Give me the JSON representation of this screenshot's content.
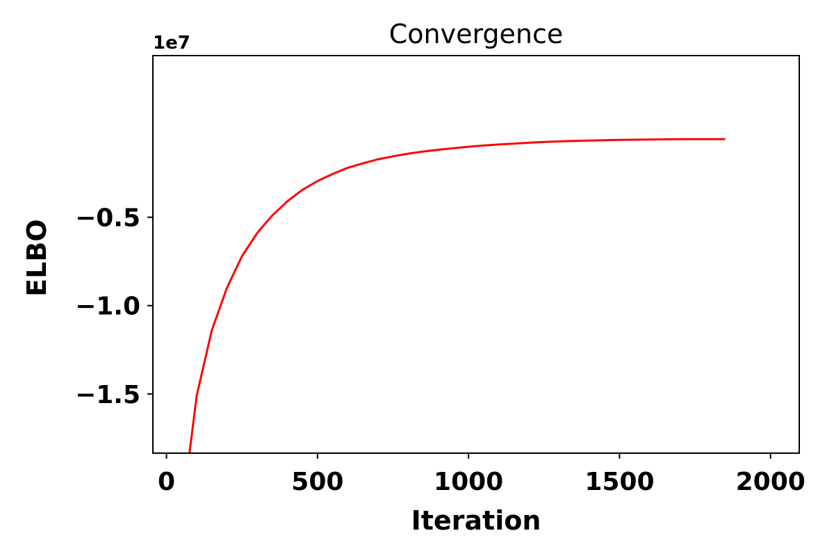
{
  "chart_data": {
    "type": "line",
    "title": "Convergence",
    "xlabel": "Iteration",
    "ylabel": "ELBO",
    "y_offset_label": "1e7",
    "xlim": [
      -45,
      2095
    ],
    "ylim": [
      -1.835,
      0.415
    ],
    "xticks": [
      0,
      500,
      1000,
      1500,
      2000
    ],
    "xtick_labels": [
      "0",
      "500",
      "1000",
      "1500",
      "2000"
    ],
    "yticks": [
      -0.5,
      -1.0,
      -1.5
    ],
    "ytick_labels": [
      "−0.5",
      "−1.0",
      "−1.5"
    ],
    "grid": false,
    "series": [
      {
        "color": "#ff0000",
        "x": [
          75,
          100,
          150,
          200,
          250,
          300,
          350,
          400,
          450,
          500,
          550,
          600,
          650,
          700,
          750,
          800,
          850,
          900,
          950,
          1000,
          1050,
          1100,
          1150,
          1200,
          1250,
          1300,
          1350,
          1400,
          1450,
          1500,
          1550,
          1600,
          1650,
          1700,
          1750,
          1800,
          1850
        ],
        "y": [
          -1.85,
          -1.51,
          -1.14,
          -0.9,
          -0.72,
          -0.59,
          -0.49,
          -0.41,
          -0.345,
          -0.295,
          -0.255,
          -0.22,
          -0.195,
          -0.172,
          -0.155,
          -0.14,
          -0.128,
          -0.118,
          -0.109,
          -0.101,
          -0.094,
          -0.088,
          -0.083,
          -0.078,
          -0.074,
          -0.071,
          -0.068,
          -0.066,
          -0.064,
          -0.062,
          -0.061,
          -0.06,
          -0.059,
          -0.058,
          -0.058,
          -0.058,
          -0.058
        ]
      }
    ]
  }
}
